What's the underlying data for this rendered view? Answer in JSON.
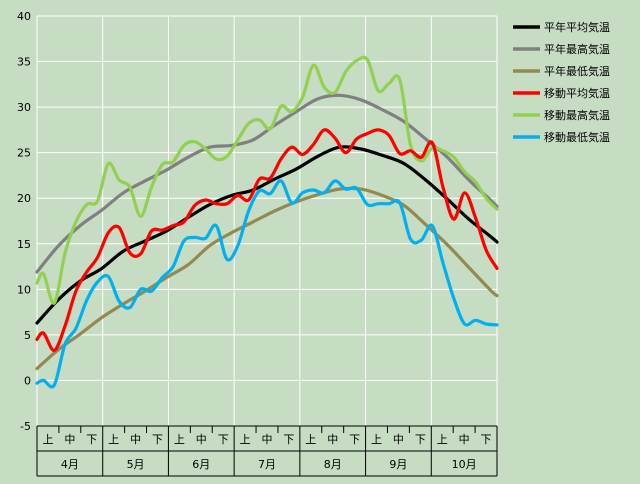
{
  "chart_data": {
    "type": "line",
    "ylim": [
      -5,
      40
    ],
    "yticks": [
      -5,
      0,
      5,
      10,
      15,
      20,
      25,
      30,
      35,
      40
    ],
    "grid": true,
    "legend_position": "right",
    "x_subdivisions": [
      "上",
      "中",
      "下"
    ],
    "months": [
      "4月",
      "5月",
      "6月",
      "7月",
      "8月",
      "9月",
      "10月"
    ],
    "x_range_days": [
      1,
      214
    ],
    "series": [
      {
        "name": "平年平均気温",
        "color": "#000000",
        "x": [
          1,
          11,
          21,
          31,
          41,
          51,
          61,
          71,
          81,
          91,
          101,
          111,
          121,
          131,
          141,
          151,
          161,
          171,
          181,
          191,
          201,
          211,
          214
        ],
        "values": [
          6.3,
          8.9,
          10.9,
          12.3,
          14.2,
          15.3,
          16.4,
          17.9,
          19.3,
          20.3,
          20.9,
          22.1,
          23.2,
          24.6,
          25.6,
          25.4,
          24.7,
          23.8,
          22.0,
          19.9,
          17.7,
          15.8,
          15.2
        ],
        "note": ""
      },
      {
        "name": "平年最高気温",
        "color": "#808080",
        "x": [
          1,
          11,
          21,
          31,
          41,
          51,
          61,
          71,
          81,
          91,
          101,
          111,
          121,
          131,
          141,
          151,
          161,
          171,
          181,
          191,
          201,
          211,
          214
        ],
        "values": [
          11.9,
          14.8,
          17.0,
          18.7,
          20.6,
          21.9,
          23.1,
          24.5,
          25.6,
          25.8,
          26.4,
          28.0,
          29.5,
          30.9,
          31.3,
          30.8,
          29.7,
          28.4,
          26.5,
          24.5,
          22.0,
          19.8,
          19.1
        ]
      },
      {
        "name": "平年最低気温",
        "color": "#938953",
        "x": [
          1,
          11,
          21,
          31,
          41,
          51,
          61,
          71,
          81,
          91,
          101,
          111,
          121,
          131,
          141,
          151,
          161,
          171,
          181,
          191,
          201,
          211,
          214
        ],
        "values": [
          1.3,
          3.4,
          5.1,
          6.9,
          8.4,
          9.8,
          11.3,
          12.7,
          14.8,
          16.2,
          17.4,
          18.6,
          19.6,
          20.4,
          21.0,
          21.0,
          20.3,
          19.2,
          17.1,
          14.9,
          12.4,
          9.9,
          9.3
        ]
      },
      {
        "name": "移動平均気温",
        "color": "#ff0000",
        "x": [
          1,
          4,
          9,
          14,
          19,
          24,
          29,
          34,
          39,
          44,
          49,
          54,
          59,
          64,
          69,
          74,
          79,
          84,
          89,
          94,
          99,
          104,
          109,
          114,
          119,
          124,
          129,
          134,
          139,
          144,
          149,
          154,
          159,
          164,
          169,
          174,
          179,
          184,
          189,
          194,
          199,
          204,
          209,
          214
        ],
        "values": [
          4.5,
          5.2,
          3.3,
          6.0,
          9.8,
          11.9,
          13.5,
          16.2,
          16.8,
          14.0,
          13.9,
          16.4,
          16.5,
          17.0,
          17.4,
          19.2,
          19.8,
          19.4,
          19.4,
          20.3,
          19.8,
          22.1,
          22.2,
          24.3,
          25.6,
          24.8,
          25.9,
          27.5,
          26.6,
          25.0,
          26.5,
          27.1,
          27.5,
          26.9,
          24.9,
          25.2,
          24.5,
          26.1,
          21.2,
          17.7,
          20.6,
          17.9,
          14.3,
          12.3
        ]
      },
      {
        "name": "移動最高気温",
        "color": "#92d050",
        "x": [
          1,
          4,
          9,
          14,
          19,
          24,
          29,
          34,
          39,
          44,
          49,
          54,
          59,
          64,
          69,
          74,
          79,
          84,
          89,
          94,
          99,
          104,
          109,
          114,
          119,
          124,
          129,
          134,
          139,
          144,
          149,
          154,
          159,
          164,
          169,
          174,
          179,
          184,
          189,
          194,
          199,
          204,
          209,
          214
        ],
        "values": [
          10.7,
          11.7,
          8.5,
          14.0,
          17.4,
          19.3,
          19.7,
          23.8,
          22.0,
          21.2,
          18.0,
          21.2,
          23.7,
          24.0,
          25.8,
          26.2,
          25.4,
          24.3,
          24.6,
          26.4,
          28.2,
          28.6,
          27.6,
          30.1,
          29.5,
          31.1,
          34.6,
          32.2,
          31.6,
          33.9,
          35.1,
          35.2,
          31.8,
          32.6,
          33.0,
          25.8,
          24.1,
          25.5,
          25.2,
          24.5,
          22.9,
          21.8,
          20.0,
          18.8
        ]
      },
      {
        "name": "移動最低気温",
        "color": "#00b0f0",
        "x": [
          1,
          4,
          9,
          14,
          19,
          24,
          29,
          34,
          39,
          44,
          49,
          54,
          59,
          64,
          69,
          74,
          79,
          84,
          89,
          94,
          99,
          104,
          109,
          114,
          119,
          124,
          129,
          134,
          139,
          144,
          149,
          154,
          159,
          164,
          169,
          174,
          179,
          184,
          189,
          194,
          199,
          204,
          209,
          214
        ],
        "values": [
          -0.3,
          0.0,
          -0.5,
          4.0,
          5.7,
          8.8,
          10.8,
          11.4,
          8.7,
          8.0,
          10.0,
          9.8,
          11.3,
          12.5,
          15.3,
          15.7,
          15.6,
          17.0,
          13.3,
          14.8,
          18.6,
          20.8,
          20.5,
          21.9,
          19.5,
          20.6,
          20.9,
          20.6,
          21.9,
          21.0,
          21.1,
          19.3,
          19.4,
          19.4,
          19.5,
          15.5,
          15.4,
          17.0,
          12.9,
          9.0,
          6.2,
          6.6,
          6.2,
          6.1
        ]
      }
    ]
  }
}
